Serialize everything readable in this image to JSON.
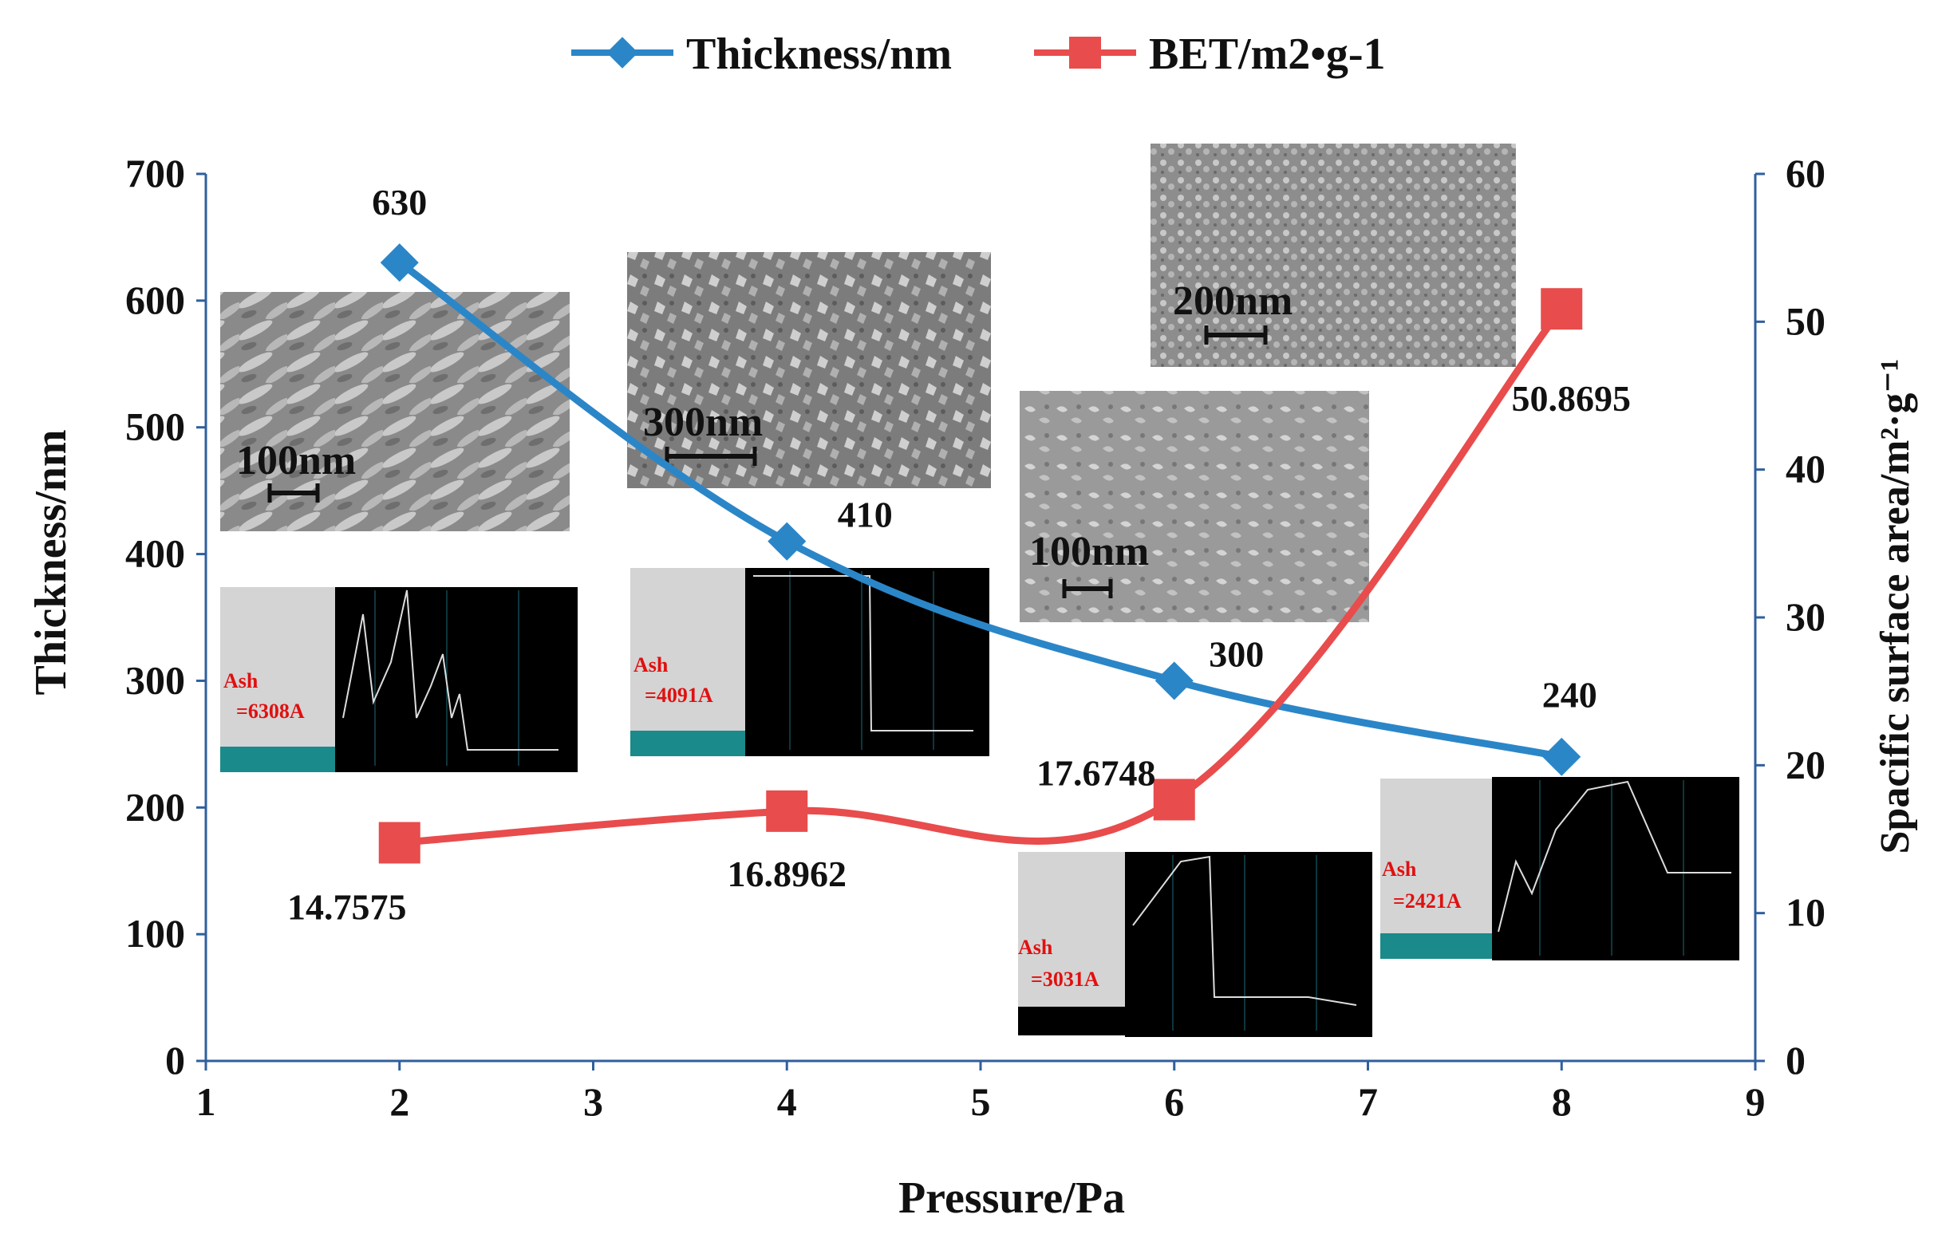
{
  "chart_data": {
    "type": "line",
    "title": "",
    "xlabel": "Pressure/Pa",
    "ylabel_left": "Thickness/nm",
    "ylabel_right": "Spacific surface area/m²·g⁻¹",
    "xlim": [
      1,
      9
    ],
    "ylim_left": [
      0,
      700
    ],
    "ylim_right": [
      0,
      60
    ],
    "x_ticks": [
      "1",
      "2",
      "3",
      "4",
      "5",
      "6",
      "7",
      "8",
      "9"
    ],
    "y_left_ticks": [
      "0",
      "100",
      "200",
      "300",
      "400",
      "500",
      "600",
      "700"
    ],
    "y_right_ticks": [
      "0",
      "10",
      "20",
      "30",
      "40",
      "50",
      "60"
    ],
    "grid": false,
    "legend_position": "top-center",
    "series": [
      {
        "name": "Thickness/nm",
        "axis": "left",
        "marker": "diamond",
        "color": "#2b86c8",
        "x": [
          2,
          4,
          6,
          8
        ],
        "values": [
          630,
          410,
          300,
          240
        ],
        "data_labels": [
          "630",
          "410",
          "300",
          "240"
        ]
      },
      {
        "name": "BET/m2•g-1",
        "axis": "right",
        "marker": "square",
        "color": "#e84c4c",
        "x": [
          2,
          4,
          6,
          8
        ],
        "values": [
          14.7575,
          16.8962,
          17.6748,
          50.8695
        ],
        "data_labels": [
          "14.7575",
          "16.8962",
          "17.6748",
          "50.8695"
        ]
      }
    ]
  },
  "insets": {
    "sem": [
      {
        "scale": "100nm"
      },
      {
        "scale": "300nm"
      },
      {
        "scale": "100nm"
      },
      {
        "scale": "200nm"
      }
    ],
    "profiles": [
      {
        "label": "Ash",
        "value": "=6308A"
      },
      {
        "label": "Ash",
        "value": "=4091A"
      },
      {
        "label": "Ash",
        "value": "=3031A"
      },
      {
        "label": "Ash",
        "value": "=2421A"
      }
    ]
  }
}
